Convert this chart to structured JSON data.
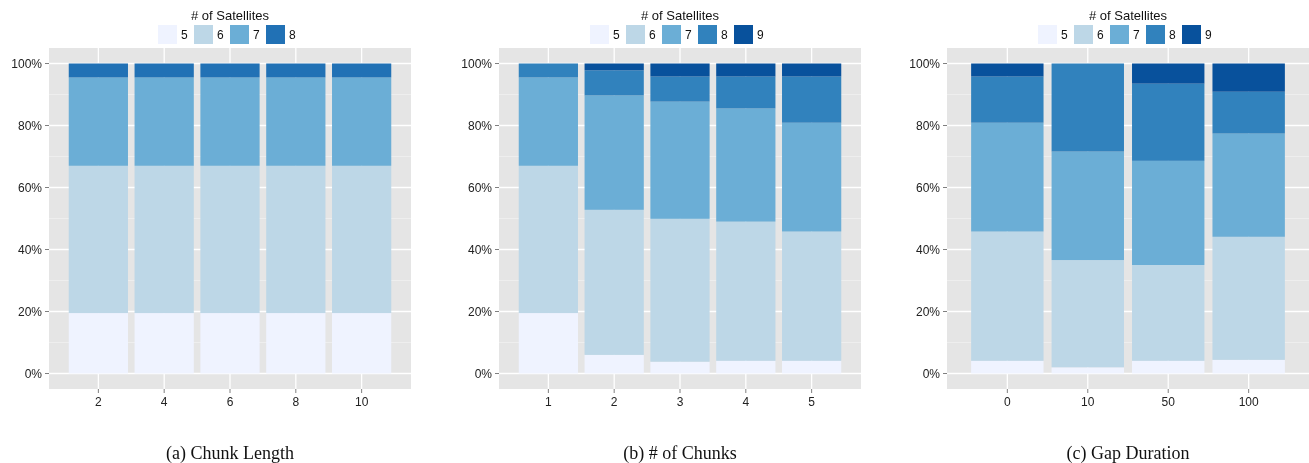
{
  "chart_data": [
    {
      "type": "bar",
      "title": "(a)  Chunk Length",
      "legend_title": "# of Satellites",
      "legend": "top",
      "stacked": true,
      "grid": true,
      "categories": [
        "2",
        "4",
        "6",
        "8",
        "10"
      ],
      "series": [
        {
          "name": "5",
          "color": "#eff3ff",
          "values": [
            19.5,
            19.5,
            19.5,
            19.5,
            19.5
          ]
        },
        {
          "name": "6",
          "color": "#bdd7e7",
          "values": [
            47.5,
            47.5,
            47.5,
            47.5,
            47.5
          ]
        },
        {
          "name": "7",
          "color": "#6baed6",
          "values": [
            28.5,
            28.5,
            28.5,
            28.5,
            28.5
          ]
        },
        {
          "name": "8",
          "color": "#2171b5",
          "values": [
            4.5,
            4.5,
            4.5,
            4.5,
            4.5
          ]
        }
      ],
      "ylim": [
        -5,
        105
      ],
      "yticks": [
        {
          "value": 0,
          "label": "0%"
        },
        {
          "value": 20,
          "label": "20%"
        },
        {
          "value": 40,
          "label": "40%"
        },
        {
          "value": 60,
          "label": "60%"
        },
        {
          "value": 80,
          "label": "80%"
        },
        {
          "value": 100,
          "label": "100%"
        }
      ]
    },
    {
      "type": "bar",
      "title": "(b)  # of Chunks",
      "legend_title": "# of Satellites",
      "legend": "top",
      "stacked": true,
      "grid": true,
      "categories": [
        "1",
        "2",
        "3",
        "4",
        "5"
      ],
      "series": [
        {
          "name": "5",
          "color": "#eff3ff",
          "values": [
            19.5,
            6.0,
            3.8,
            4.1,
            4.1
          ]
        },
        {
          "name": "6",
          "color": "#bdd7e7",
          "values": [
            47.5,
            46.8,
            46.1,
            44.9,
            41.7
          ]
        },
        {
          "name": "7",
          "color": "#6baed6",
          "values": [
            28.5,
            36.9,
            37.8,
            36.5,
            35.1
          ]
        },
        {
          "name": "8",
          "color": "#3182bd",
          "values": [
            4.5,
            8.1,
            8.1,
            10.3,
            14.9
          ]
        },
        {
          "name": "9",
          "color": "#08519c",
          "values": [
            null,
            2.2,
            4.2,
            4.2,
            4.2
          ]
        }
      ],
      "ylim": [
        -5,
        105
      ],
      "yticks": [
        {
          "value": 0,
          "label": "0%"
        },
        {
          "value": 20,
          "label": "20%"
        },
        {
          "value": 40,
          "label": "40%"
        },
        {
          "value": 60,
          "label": "60%"
        },
        {
          "value": 80,
          "label": "80%"
        },
        {
          "value": 100,
          "label": "100%"
        }
      ]
    },
    {
      "type": "bar",
      "title": "(c)  Gap Duration",
      "legend_title": "# of Satellites",
      "legend": "top",
      "stacked": true,
      "grid": true,
      "categories": [
        "0",
        "10",
        "50",
        "100"
      ],
      "series": [
        {
          "name": "5",
          "color": "#eff3ff",
          "values": [
            4.1,
            2.0,
            4.1,
            4.4
          ]
        },
        {
          "name": "6",
          "color": "#bdd7e7",
          "values": [
            41.7,
            34.6,
            30.9,
            39.7
          ]
        },
        {
          "name": "7",
          "color": "#6baed6",
          "values": [
            35.1,
            35.0,
            33.6,
            33.3
          ]
        },
        {
          "name": "8",
          "color": "#3182bd",
          "values": [
            14.9,
            28.4,
            24.9,
            13.5
          ]
        },
        {
          "name": "9",
          "color": "#08519c",
          "values": [
            4.2,
            null,
            6.5,
            9.1
          ]
        }
      ],
      "ylim": [
        -5,
        105
      ],
      "yticks": [
        {
          "value": 0,
          "label": "0%"
        },
        {
          "value": 20,
          "label": "20%"
        },
        {
          "value": 40,
          "label": "40%"
        },
        {
          "value": 60,
          "label": "60%"
        },
        {
          "value": 80,
          "label": "80%"
        },
        {
          "value": 100,
          "label": "100%"
        }
      ]
    }
  ]
}
